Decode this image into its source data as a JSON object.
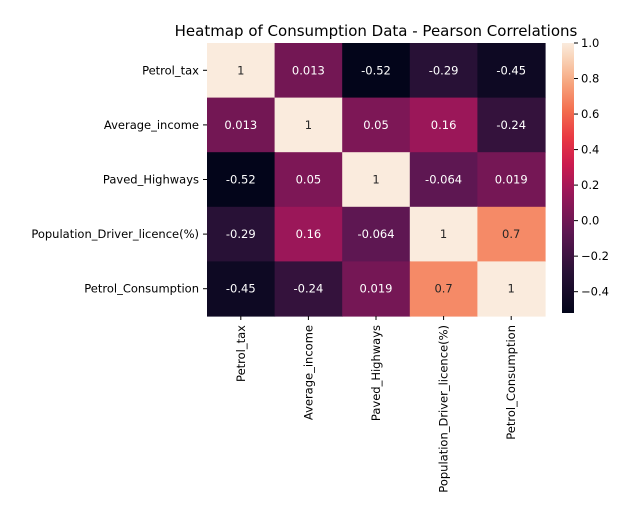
{
  "chart_data": {
    "type": "heatmap",
    "title": "Heatmap of Consumption Data - Pearson Correlations",
    "row_labels": [
      "Petrol_tax",
      "Average_income",
      "Paved_Highways",
      "Population_Driver_licence(%)",
      "Petrol_Consumption"
    ],
    "col_labels": [
      "Petrol_tax",
      "Average_income",
      "Paved_Highways",
      "Population_Driver_licence(%)",
      "Petrol_Consumption"
    ],
    "values": [
      [
        1,
        0.013,
        -0.52,
        -0.29,
        -0.45
      ],
      [
        0.013,
        1,
        0.05,
        0.16,
        -0.24
      ],
      [
        -0.52,
        0.05,
        1,
        -0.064,
        0.019
      ],
      [
        -0.29,
        0.16,
        -0.064,
        1,
        0.7
      ],
      [
        -0.45,
        -0.24,
        0.019,
        0.7,
        1
      ]
    ],
    "cell_labels": [
      [
        "1",
        "0.013",
        "-0.52",
        "-0.29",
        "-0.45"
      ],
      [
        "0.013",
        "1",
        "0.05",
        "0.16",
        "-0.24"
      ],
      [
        "-0.52",
        "0.05",
        "1",
        "-0.064",
        "0.019"
      ],
      [
        "-0.29",
        "0.16",
        "-0.064",
        "1",
        "0.7"
      ],
      [
        "-0.45",
        "-0.24",
        "0.019",
        "0.7",
        "1"
      ]
    ],
    "colorbar": {
      "min": -0.52,
      "max": 1.0,
      "ticks": [
        1.0,
        0.8,
        0.6,
        0.4,
        0.2,
        0.0,
        -0.2,
        -0.4
      ],
      "tick_labels": [
        "1.0",
        "0.8",
        "0.6",
        "0.4",
        "0.2",
        "0.0",
        "−0.2",
        "−0.4"
      ],
      "colormap": "rocket"
    }
  }
}
